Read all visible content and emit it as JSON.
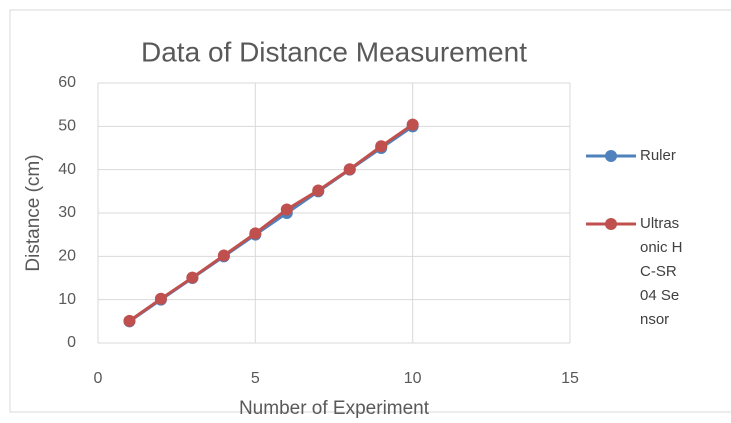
{
  "chart_data": {
    "type": "line",
    "title": "Data of Distance Measurement",
    "x_label": "Number of Experiment",
    "y_label": "Distance (cm)",
    "x": [
      1,
      2,
      3,
      4,
      5,
      6,
      7,
      8,
      9,
      10
    ],
    "series": [
      {
        "name": "Ruler",
        "color": "#4f81bd",
        "values": [
          5,
          10,
          15,
          20,
          25,
          30,
          35,
          40,
          45,
          50
        ]
      },
      {
        "name": "Ultrasonic HC-SR04 Sensor",
        "color": "#c0504d",
        "values": [
          5.1,
          10.2,
          15.1,
          20.2,
          25.3,
          30.8,
          35.2,
          40.1,
          45.4,
          50.4
        ]
      }
    ],
    "xlim": [
      0,
      15
    ],
    "xticks": [
      0,
      5,
      10,
      15
    ],
    "ylim": [
      0,
      60
    ],
    "yticks": [
      0,
      10,
      20,
      30,
      40,
      50,
      60
    ],
    "grid": true,
    "legend": "right"
  }
}
